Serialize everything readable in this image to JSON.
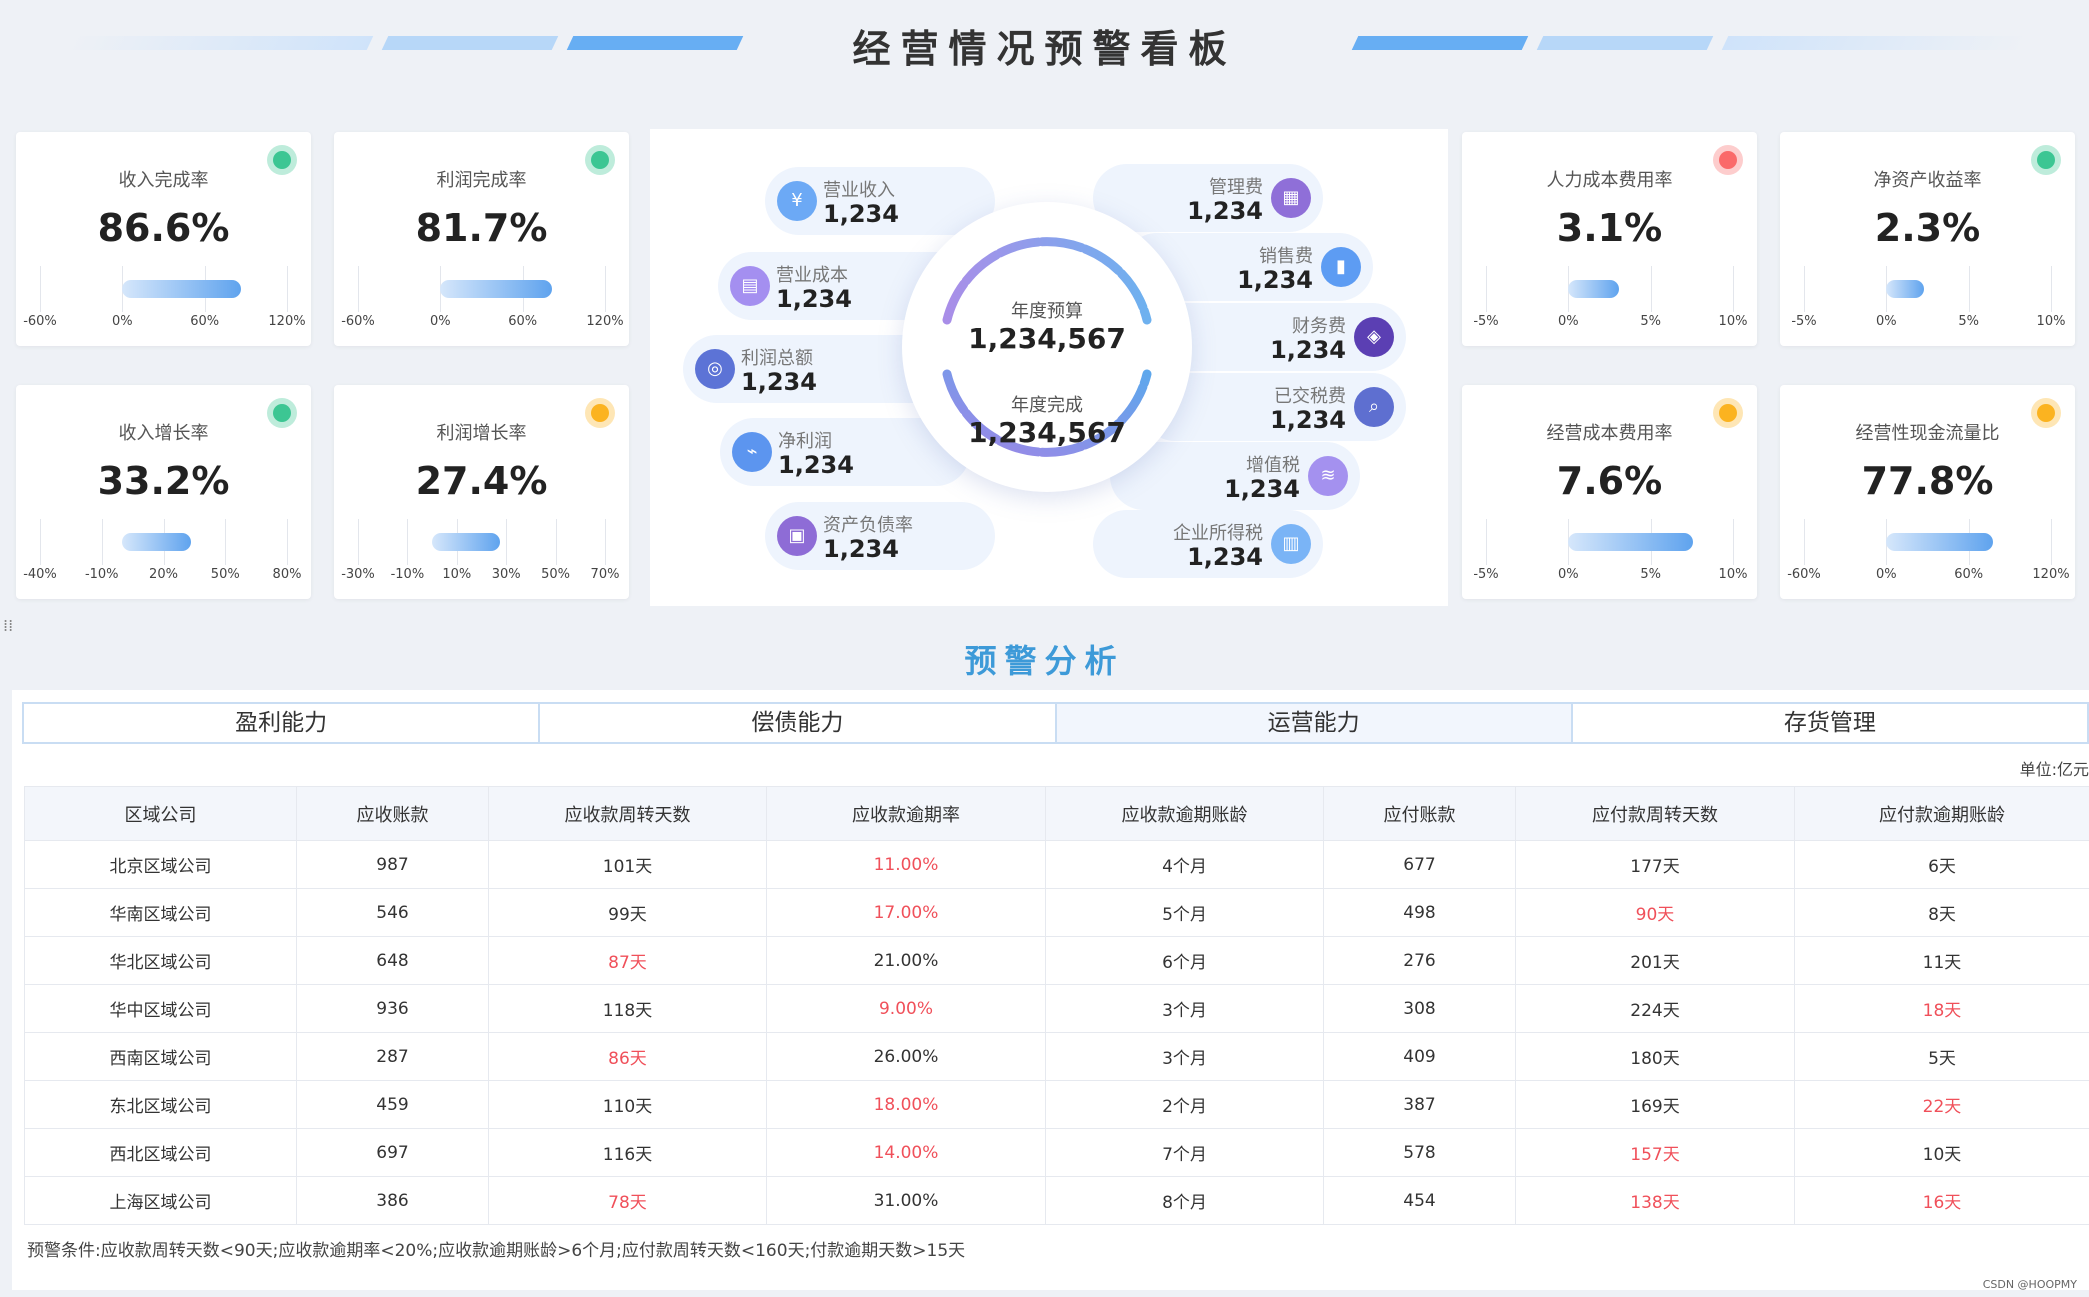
{
  "title": "经营情况预警看板",
  "kpis": [
    {
      "id": "k1",
      "title": "收入完成率",
      "value": "86.6%",
      "status": "green",
      "axis": [
        "-60%",
        "0%",
        "60%",
        "120%"
      ],
      "bar_from": 0.0,
      "bar_to": 86.6
    },
    {
      "id": "k2",
      "title": "利润完成率",
      "value": "81.7%",
      "status": "green",
      "axis": [
        "-60%",
        "0%",
        "60%",
        "120%"
      ],
      "bar_from": 0.0,
      "bar_to": 81.7
    },
    {
      "id": "k3",
      "title": "收入增长率",
      "value": "33.2%",
      "status": "green",
      "axis": [
        "-40%",
        "-10%",
        "20%",
        "50%",
        "80%"
      ],
      "bar_from": 0.0,
      "bar_to": 33.2
    },
    {
      "id": "k4",
      "title": "利润增长率",
      "value": "27.4%",
      "status": "yellow",
      "axis": [
        "-30%",
        "-10%",
        "10%",
        "30%",
        "50%",
        "70%"
      ],
      "bar_from": 0.0,
      "bar_to": 27.4
    },
    {
      "id": "k5",
      "title": "人力成本费用率",
      "value": "3.1%",
      "status": "red",
      "axis": [
        "-5%",
        "0%",
        "5%",
        "10%"
      ],
      "bar_from": 0.0,
      "bar_to": 3.1
    },
    {
      "id": "k6",
      "title": "净资产收益率",
      "value": "2.3%",
      "status": "green",
      "axis": [
        "-5%",
        "0%",
        "5%",
        "10%"
      ],
      "bar_from": 0.0,
      "bar_to": 2.3
    },
    {
      "id": "k7",
      "title": "经营成本费用率",
      "value": "7.6%",
      "status": "yellow",
      "axis": [
        "-5%",
        "0%",
        "5%",
        "10%"
      ],
      "bar_from": 0.0,
      "bar_to": 7.6
    },
    {
      "id": "k8",
      "title": "经营性现金流量比",
      "value": "77.8%",
      "status": "yellow",
      "axis": [
        "-60%",
        "0%",
        "60%",
        "120%"
      ],
      "bar_from": 0.0,
      "bar_to": 77.8
    }
  ],
  "status_colors": {
    "green": "#3cc693",
    "yellow": "#fbb320",
    "red": "#fa6a6a"
  },
  "center": {
    "budget_label": "年度预算",
    "budget_value": "1,234,567",
    "done_label": "年度完成",
    "done_value": "1,234,567",
    "left_items": [
      {
        "label": "营业收入",
        "value": "1,234",
        "icon": "money-bag-icon",
        "glyph": "¥",
        "color": "#6ca9f5"
      },
      {
        "label": "营业成本",
        "value": "1,234",
        "icon": "cost-document-icon",
        "glyph": "▤",
        "color": "#a48ff0"
      },
      {
        "label": "利润总额",
        "value": "1,234",
        "icon": "coins-icon",
        "glyph": "◎",
        "color": "#5c73d6"
      },
      {
        "label": "净利润",
        "value": "1,234",
        "icon": "profit-chart-icon",
        "glyph": "⌁",
        "color": "#5c95ef"
      },
      {
        "label": "资产负债率",
        "value": "1,234",
        "icon": "ledger-icon",
        "glyph": "▣",
        "color": "#8e6cd6"
      }
    ],
    "right_items": [
      {
        "label": "管理费",
        "value": "1,234",
        "icon": "calendar-icon",
        "glyph": "▦",
        "color": "#8f6fd8"
      },
      {
        "label": "销售费",
        "value": "1,234",
        "icon": "bar-chart-icon",
        "glyph": "▮",
        "color": "#5d9cf3"
      },
      {
        "label": "财务费",
        "value": "1,234",
        "icon": "wallet-icon",
        "glyph": "◈",
        "color": "#5b3fb3"
      },
      {
        "label": "已交税费",
        "value": "1,234",
        "icon": "tax-search-icon",
        "glyph": "⌕",
        "color": "#5e6fd0"
      },
      {
        "label": "增值税",
        "value": "1,234",
        "icon": "coin-stack-icon",
        "glyph": "≋",
        "color": "#a491ef"
      },
      {
        "label": "企业所得税",
        "value": "1,234",
        "icon": "building-icon",
        "glyph": "▥",
        "color": "#7ab4f6"
      }
    ]
  },
  "analysis": {
    "title": "预警分析",
    "tabs": [
      "盈利能力",
      "偿债能力",
      "运营能力",
      "存货管理"
    ],
    "active_tab": 2,
    "unit": "单位:亿元",
    "columns": [
      "区域公司",
      "应收账款",
      "应收款周转天数",
      "应收款逾期率",
      "应收款逾期账龄",
      "应付账款",
      "应付款周转天数",
      "应付款逾期账龄"
    ],
    "rows": [
      {
        "cells": [
          "北京区域公司",
          "987",
          "101天",
          "11.00%",
          "4个月",
          "677",
          "177天",
          "6天"
        ],
        "warn": [
          3
        ]
      },
      {
        "cells": [
          "华南区域公司",
          "546",
          "99天",
          "17.00%",
          "5个月",
          "498",
          "90天",
          "8天"
        ],
        "warn": [
          3,
          6
        ]
      },
      {
        "cells": [
          "华北区域公司",
          "648",
          "87天",
          "21.00%",
          "6个月",
          "276",
          "201天",
          "11天"
        ],
        "warn": [
          2
        ]
      },
      {
        "cells": [
          "华中区域公司",
          "936",
          "118天",
          "9.00%",
          "3个月",
          "308",
          "224天",
          "18天"
        ],
        "warn": [
          3,
          7
        ]
      },
      {
        "cells": [
          "西南区域公司",
          "287",
          "86天",
          "26.00%",
          "3个月",
          "409",
          "180天",
          "5天"
        ],
        "warn": [
          2
        ]
      },
      {
        "cells": [
          "东北区域公司",
          "459",
          "110天",
          "18.00%",
          "2个月",
          "387",
          "169天",
          "22天"
        ],
        "warn": [
          3,
          7
        ]
      },
      {
        "cells": [
          "西北区域公司",
          "697",
          "116天",
          "14.00%",
          "7个月",
          "578",
          "157天",
          "10天"
        ],
        "warn": [
          3,
          6
        ]
      },
      {
        "cells": [
          "上海区域公司",
          "386",
          "78天",
          "31.00%",
          "8个月",
          "454",
          "138天",
          "16天"
        ],
        "warn": [
          2,
          6,
          7
        ]
      }
    ],
    "note": "预警条件:应收款周转天数<90天;应收款逾期率<20%;应收款逾期账龄>6个月;应付款周转天数<160天;付款逾期天数>15天"
  },
  "credit": "CSDN @HOOPMY"
}
